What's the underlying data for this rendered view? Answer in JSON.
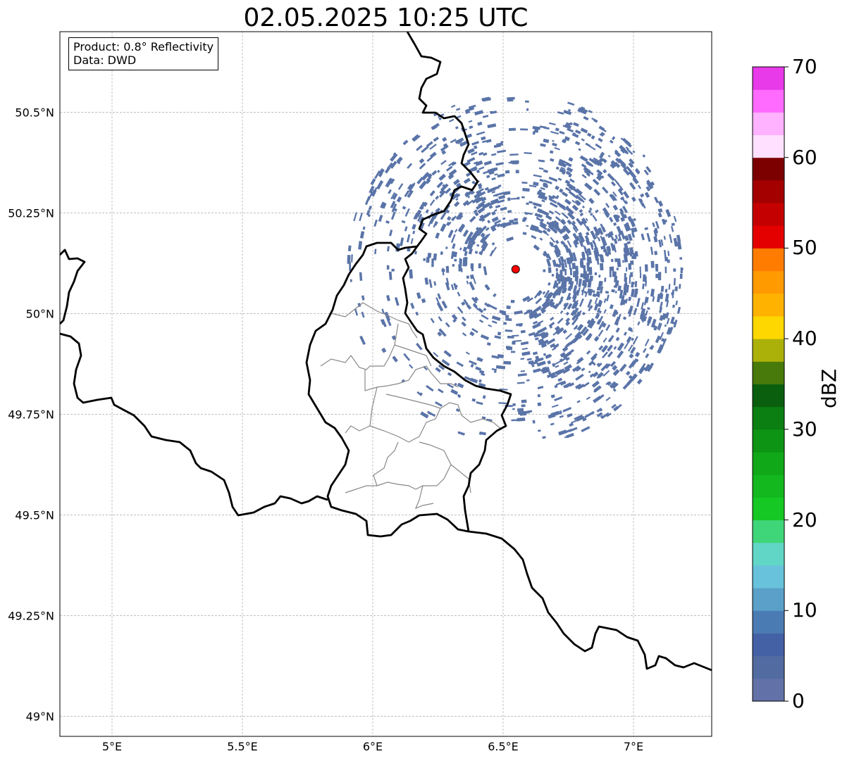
{
  "title": "02.05.2025 10:25 UTC",
  "info_box": {
    "product": "Product: 0.8° Reflectivity",
    "data": "Data: DWD"
  },
  "map": {
    "extent": {
      "lon_min": 4.8,
      "lon_max": 7.3,
      "lat_min": 48.95,
      "lat_max": 50.7
    },
    "lon_ticks": [
      {
        "value": 5.0,
        "label": "5°E"
      },
      {
        "value": 5.5,
        "label": "5.5°E"
      },
      {
        "value": 6.0,
        "label": "6°E"
      },
      {
        "value": 6.5,
        "label": "6.5°E"
      },
      {
        "value": 7.0,
        "label": "7°E"
      }
    ],
    "lat_ticks": [
      {
        "value": 49.0,
        "label": "49°N"
      },
      {
        "value": 49.25,
        "label": "49.25°N"
      },
      {
        "value": 49.5,
        "label": "49.5°N"
      },
      {
        "value": 49.75,
        "label": "49.75°N"
      },
      {
        "value": 50.0,
        "label": "50°N"
      },
      {
        "value": 50.25,
        "label": "50.25°N"
      },
      {
        "value": 50.5,
        "label": "50.5°N"
      }
    ],
    "radar_site": {
      "lon": 6.548,
      "lat": 50.11,
      "color": "#ff0000"
    },
    "echo_color": "#5a74a8"
  },
  "colorbar": {
    "label": "dBZ",
    "min": 0,
    "max": 70,
    "ticks": [
      {
        "value": 0,
        "label": "0"
      },
      {
        "value": 10,
        "label": "10"
      },
      {
        "value": 20,
        "label": "20"
      },
      {
        "value": 30,
        "label": "30"
      },
      {
        "value": 40,
        "label": "40"
      },
      {
        "value": 50,
        "label": "50"
      },
      {
        "value": 60,
        "label": "60"
      },
      {
        "value": 70,
        "label": "70"
      }
    ],
    "colors": [
      "#6272a8",
      "#526ba0",
      "#4461a6",
      "#4b7bb3",
      "#5aa0c8",
      "#68c2dc",
      "#62d6c6",
      "#3fd679",
      "#15c823",
      "#12b81d",
      "#10a818",
      "#0e9414",
      "#0b7f12",
      "#095f0e",
      "#477a0a",
      "#acb10a",
      "#fed700",
      "#ffb300",
      "#ff9a00",
      "#ff7c00",
      "#e50000",
      "#c50000",
      "#a40000",
      "#7c0000",
      "#ffe0ff",
      "#ffb2ff",
      "#ff6aff",
      "#e83ae8"
    ]
  }
}
